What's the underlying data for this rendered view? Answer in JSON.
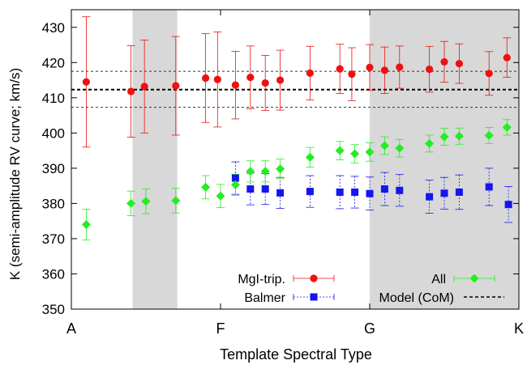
{
  "chart_data": {
    "type": "scatter",
    "xlabel": "Template Spectral Type",
    "ylabel": "K (semi-amplitude RV curve; km/s)",
    "xlim": [
      0,
      3
    ],
    "ylim": [
      350,
      435
    ],
    "x_ticks": [
      {
        "value": 0,
        "label": "A"
      },
      {
        "value": 1,
        "label": "F"
      },
      {
        "value": 2,
        "label": "G"
      },
      {
        "value": 3,
        "label": "K"
      }
    ],
    "y_ticks": [
      350,
      360,
      370,
      380,
      390,
      400,
      410,
      420,
      430
    ],
    "shaded_regions": [
      [
        0.41,
        0.71
      ],
      [
        2.0,
        3.0
      ]
    ],
    "model": {
      "name": "Model (CoM)",
      "value": 412.3,
      "upper": 417.5,
      "lower": 407.3,
      "color": "#000000"
    },
    "legend": {
      "position": "bottom"
    },
    "series": [
      {
        "name": "MgI-trip.",
        "marker": "circle",
        "color": "#ee1111",
        "points": [
          {
            "x": 0.1,
            "y": 414.5,
            "err": 18.5
          },
          {
            "x": 0.4,
            "y": 411.8,
            "err": 13.0
          },
          {
            "x": 0.49,
            "y": 413.2,
            "err": 13.2
          },
          {
            "x": 0.7,
            "y": 413.4,
            "err": 14.0
          },
          {
            "x": 0.9,
            "y": 415.6,
            "err": 12.6
          },
          {
            "x": 0.98,
            "y": 415.2,
            "err": 13.5
          },
          {
            "x": 1.1,
            "y": 413.6,
            "err": 9.6
          },
          {
            "x": 1.2,
            "y": 415.8,
            "err": 8.9
          },
          {
            "x": 1.3,
            "y": 414.2,
            "err": 7.8
          },
          {
            "x": 1.4,
            "y": 415.0,
            "err": 8.5
          },
          {
            "x": 1.6,
            "y": 417.0,
            "err": 7.6
          },
          {
            "x": 1.8,
            "y": 418.2,
            "err": 7.0
          },
          {
            "x": 1.88,
            "y": 416.7,
            "err": 7.5
          },
          {
            "x": 2.0,
            "y": 418.6,
            "err": 6.5
          },
          {
            "x": 2.1,
            "y": 417.8,
            "err": 6.6
          },
          {
            "x": 2.2,
            "y": 418.7,
            "err": 6.0
          },
          {
            "x": 2.4,
            "y": 418.1,
            "err": 6.5
          },
          {
            "x": 2.5,
            "y": 420.2,
            "err": 5.8
          },
          {
            "x": 2.6,
            "y": 419.7,
            "err": 5.6
          },
          {
            "x": 2.8,
            "y": 416.9,
            "err": 6.2
          },
          {
            "x": 2.92,
            "y": 421.4,
            "err": 5.6
          }
        ]
      },
      {
        "name": "Balmer",
        "marker": "square",
        "color": "#1515ee",
        "points": [
          {
            "x": 1.1,
            "y": 387.2,
            "err": 4.6
          },
          {
            "x": 1.2,
            "y": 384.1,
            "err": 4.5
          },
          {
            "x": 1.3,
            "y": 384.1,
            "err": 4.4
          },
          {
            "x": 1.4,
            "y": 383.0,
            "err": 4.4
          },
          {
            "x": 1.6,
            "y": 383.4,
            "err": 4.5
          },
          {
            "x": 1.8,
            "y": 383.2,
            "err": 4.7
          },
          {
            "x": 1.9,
            "y": 383.2,
            "err": 4.5
          },
          {
            "x": 2.0,
            "y": 382.8,
            "err": 4.7
          },
          {
            "x": 2.1,
            "y": 384.1,
            "err": 4.7
          },
          {
            "x": 2.2,
            "y": 383.7,
            "err": 4.5
          },
          {
            "x": 2.4,
            "y": 381.9,
            "err": 4.7
          },
          {
            "x": 2.5,
            "y": 382.9,
            "err": 4.5
          },
          {
            "x": 2.6,
            "y": 383.2,
            "err": 4.9
          },
          {
            "x": 2.8,
            "y": 384.7,
            "err": 5.3
          },
          {
            "x": 2.93,
            "y": 379.7,
            "err": 5.1
          }
        ]
      },
      {
        "name": "All",
        "marker": "diamond",
        "color": "#22ee22",
        "points": [
          {
            "x": 0.1,
            "y": 374.0,
            "err": 4.4
          },
          {
            "x": 0.4,
            "y": 380.0,
            "err": 3.5
          },
          {
            "x": 0.5,
            "y": 380.6,
            "err": 3.5
          },
          {
            "x": 0.7,
            "y": 380.8,
            "err": 3.5
          },
          {
            "x": 0.9,
            "y": 384.6,
            "err": 3.3
          },
          {
            "x": 1.0,
            "y": 382.1,
            "err": 3.3
          },
          {
            "x": 1.1,
            "y": 385.3,
            "err": 3.0
          },
          {
            "x": 1.2,
            "y": 389.1,
            "err": 3.0
          },
          {
            "x": 1.3,
            "y": 389.1,
            "err": 3.0
          },
          {
            "x": 1.4,
            "y": 389.8,
            "err": 2.8
          },
          {
            "x": 1.6,
            "y": 393.1,
            "err": 2.8
          },
          {
            "x": 1.8,
            "y": 395.0,
            "err": 2.6
          },
          {
            "x": 1.9,
            "y": 394.1,
            "err": 2.6
          },
          {
            "x": 2.0,
            "y": 394.6,
            "err": 2.6
          },
          {
            "x": 2.1,
            "y": 396.4,
            "err": 2.5
          },
          {
            "x": 2.2,
            "y": 395.7,
            "err": 2.5
          },
          {
            "x": 2.4,
            "y": 397.0,
            "err": 2.4
          },
          {
            "x": 2.5,
            "y": 398.9,
            "err": 2.4
          },
          {
            "x": 2.6,
            "y": 399.1,
            "err": 2.3
          },
          {
            "x": 2.8,
            "y": 399.3,
            "err": 2.3
          },
          {
            "x": 2.92,
            "y": 401.6,
            "err": 2.2
          }
        ]
      }
    ]
  }
}
